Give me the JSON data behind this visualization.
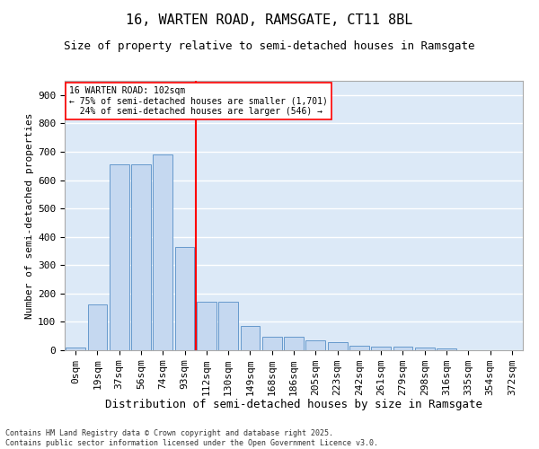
{
  "title": "16, WARTEN ROAD, RAMSGATE, CT11 8BL",
  "subtitle": "Size of property relative to semi-detached houses in Ramsgate",
  "xlabel": "Distribution of semi-detached houses by size in Ramsgate",
  "ylabel": "Number of semi-detached properties",
  "categories": [
    "0sqm",
    "19sqm",
    "37sqm",
    "56sqm",
    "74sqm",
    "93sqm",
    "112sqm",
    "130sqm",
    "149sqm",
    "168sqm",
    "186sqm",
    "205sqm",
    "223sqm",
    "242sqm",
    "261sqm",
    "279sqm",
    "298sqm",
    "316sqm",
    "335sqm",
    "354sqm",
    "372sqm"
  ],
  "values": [
    8,
    160,
    655,
    655,
    690,
    365,
    170,
    170,
    87,
    47,
    47,
    36,
    30,
    15,
    13,
    13,
    10,
    5,
    0,
    0,
    0
  ],
  "bar_color": "#c5d8f0",
  "bar_edge_color": "#6699cc",
  "background_color": "#dce9f7",
  "grid_color": "#ffffff",
  "vline_color": "red",
  "vline_x_index": 5,
  "annotation_text": "16 WARTEN ROAD: 102sqm\n← 75% of semi-detached houses are smaller (1,701)\n  24% of semi-detached houses are larger (546) →",
  "annotation_box_color": "white",
  "annotation_box_edge": "red",
  "footnote": "Contains HM Land Registry data © Crown copyright and database right 2025.\nContains public sector information licensed under the Open Government Licence v3.0.",
  "ylim": [
    0,
    950
  ],
  "yticks": [
    0,
    100,
    200,
    300,
    400,
    500,
    600,
    700,
    800,
    900
  ],
  "title_fontsize": 11,
  "subtitle_fontsize": 9,
  "xlabel_fontsize": 9,
  "ylabel_fontsize": 8,
  "tick_fontsize": 8,
  "footnote_fontsize": 6
}
